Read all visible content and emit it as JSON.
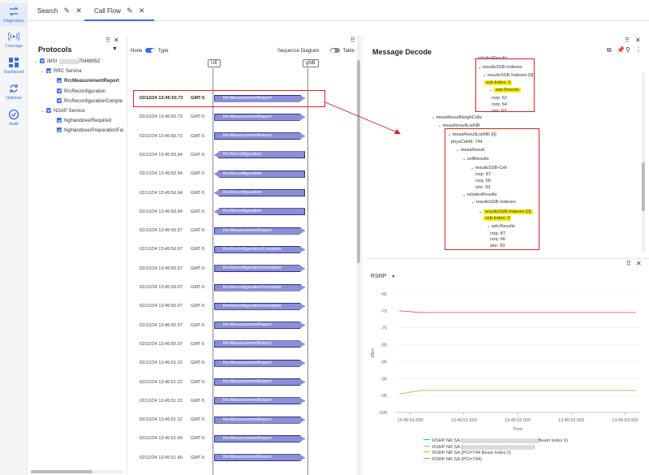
{
  "rail": [
    {
      "label": "Diagnostics",
      "icon": "swap-arrows-icon"
    },
    {
      "label": "Coverage",
      "icon": "signal-icon"
    },
    {
      "label": "Dashboard",
      "icon": "dashboard-grid-icon"
    },
    {
      "label": "Optimize",
      "icon": "refresh-icon"
    },
    {
      "label": "Audit",
      "icon": "check-circle-icon"
    }
  ],
  "tabs": [
    {
      "label": "Search"
    },
    {
      "label": "Call Flow"
    }
  ],
  "protocols": {
    "title": "Protocols",
    "tree": [
      {
        "label": "IMSI",
        "masked": "70469952",
        "level": 0,
        "caret": true
      },
      {
        "label": "RRC Service",
        "level": 1,
        "caret": true
      },
      {
        "label": "RrcMeasurementReport",
        "level": 2,
        "bold": true
      },
      {
        "label": "RrcReconfiguration",
        "level": 2
      },
      {
        "label": "RrcReconfigurationComple",
        "level": 2
      },
      {
        "label": "NGAP Service",
        "level": 1,
        "caret": true
      },
      {
        "label": "NgHandoverRequired",
        "level": 2
      },
      {
        "label": "NgHandoverPreparationFai",
        "level": 2
      }
    ]
  },
  "flow": {
    "none_label": "None",
    "type_label": "Type",
    "seq_label": "Sequence Diagram",
    "table_label": "Table",
    "lane_ue": "UE",
    "lane_gnb": "gNB",
    "messages": [
      {
        "time": "02/12/24 13:45:50.73",
        "tz": "GMT-5",
        "name": "RrcMeasurementReport",
        "dir": "right",
        "selected": true
      },
      {
        "time": "02/12/24 13:45:50.73",
        "tz": "GMT-5",
        "name": "RrcMeasurementReport",
        "dir": "right"
      },
      {
        "time": "02/12/24 13:45:50.73",
        "tz": "GMT-5",
        "name": "RrcMeasurementReport",
        "dir": "right"
      },
      {
        "time": "02/12/24 13:45:50.94",
        "tz": "GMT-5",
        "name": "RrcReconfiguration",
        "dir": "left"
      },
      {
        "time": "02/12/24 13:45:50.94",
        "tz": "GMT-5",
        "name": "RrcReconfiguration",
        "dir": "left"
      },
      {
        "time": "02/12/24 13:45:50.94",
        "tz": "GMT-5",
        "name": "RrcReconfiguration",
        "dir": "left"
      },
      {
        "time": "02/12/24 13:45:50.94",
        "tz": "GMT-5",
        "name": "RrcReconfiguration",
        "dir": "left"
      },
      {
        "time": "02/12/24 13:45:50.97",
        "tz": "GMT-5",
        "name": "RrcMeasurementReport",
        "dir": "right"
      },
      {
        "time": "02/12/24 13:45:50.97",
        "tz": "GMT-5",
        "name": "RrcReconfigurationComplete",
        "dir": "right"
      },
      {
        "time": "02/12/24 13:45:50.97",
        "tz": "GMT-5",
        "name": "RrcReconfigurationComplete",
        "dir": "right"
      },
      {
        "time": "02/12/24 13:45:50.97",
        "tz": "GMT-5",
        "name": "RrcReconfigurationComplete",
        "dir": "right"
      },
      {
        "time": "02/12/24 13:45:50.97",
        "tz": "GMT-5",
        "name": "RrcReconfigurationComplete",
        "dir": "right"
      },
      {
        "time": "02/12/24 13:45:50.97",
        "tz": "GMT-5",
        "name": "RrcMeasurementReport",
        "dir": "right"
      },
      {
        "time": "02/12/24 13:45:50.97",
        "tz": "GMT-5",
        "name": "RrcMeasurementReport",
        "dir": "right"
      },
      {
        "time": "02/12/24 13:45:51.22",
        "tz": "GMT-5",
        "name": "RrcMeasurementReport",
        "dir": "right"
      },
      {
        "time": "02/12/24 13:45:51.22",
        "tz": "GMT-5",
        "name": "RrcMeasurementReport",
        "dir": "right"
      },
      {
        "time": "02/12/24 13:45:51.22",
        "tz": "GMT-5",
        "name": "RrcMeasurementReport",
        "dir": "right"
      },
      {
        "time": "02/12/24 13:45:51.22",
        "tz": "GMT-5",
        "name": "RrcMeasurementReport",
        "dir": "right"
      },
      {
        "time": "02/12/24 13:45:51.46",
        "tz": "GMT-5",
        "name": "RrcMeasurementReport",
        "dir": "right"
      },
      {
        "time": "02/12/24 13:45:51.46",
        "tz": "GMT-5",
        "name": "RrcMeasurementReport",
        "dir": "right"
      }
    ]
  },
  "decode": {
    "title": "Message Decode",
    "rows": [
      {
        "text": "rsIndexResults",
        "indent": 0,
        "caret": true
      },
      {
        "text": "resultsSSB-Indexes",
        "indent": 1,
        "caret": true
      },
      {
        "text": "resultsSSB-Indexes [0]",
        "indent": 2,
        "caret": true
      },
      {
        "text": "ssb-Index: 6",
        "indent": 3,
        "hl": true
      },
      {
        "text": "ssb-Results",
        "indent": 3,
        "caret": true,
        "hl": true
      },
      {
        "text": "rsrp: 62",
        "indent": 5
      },
      {
        "text": "rsrq: 64",
        "indent": 5
      },
      {
        "text": "sinr: 63",
        "indent": 5
      },
      {
        "text": "measResultNeighCells",
        "indent": -5,
        "caret": true
      },
      {
        "text": "measResultListNR",
        "indent": -4,
        "caret": true
      },
      {
        "text": "measResultListNR [0]",
        "indent": -3,
        "caret": true
      },
      {
        "text": "physCellId: 744",
        "indent": -2
      },
      {
        "text": "measResult",
        "indent": -2,
        "caret": true
      },
      {
        "text": "cellResults",
        "indent": -1,
        "caret": true
      },
      {
        "text": "resultsSSB-Cell",
        "indent": 0,
        "caret": true
      },
      {
        "text": "rsrp: 87",
        "indent": 1
      },
      {
        "text": "rsrq: 66",
        "indent": 1
      },
      {
        "text": "sinr: 93",
        "indent": 1
      },
      {
        "text": "rsIndexResults",
        "indent": -1,
        "caret": true
      },
      {
        "text": "resultsSSB-Indexes",
        "indent": 0,
        "caret": true
      },
      {
        "text": "resultsSSB-Indexes [0]",
        "indent": 1,
        "caret": true,
        "hl": true
      },
      {
        "text": "ssb-Index: 0",
        "indent": 1,
        "hl": true
      },
      {
        "text": "ssb-Results",
        "indent": 1,
        "caret": true
      },
      {
        "text": "rsrp: 87",
        "indent": 2
      },
      {
        "text": "rsrq: 66",
        "indent": 2
      },
      {
        "text": "sinr: 93",
        "indent": 2
      }
    ]
  },
  "chart_data": {
    "type": "line",
    "metric_selector": "RSRP",
    "ylabel": "dBm",
    "xlabel": "Time",
    "ylim": [
      -100,
      -65
    ],
    "yticks": [
      -65,
      -70,
      -75,
      -80,
      -85,
      -90,
      -95,
      -100
    ],
    "xticks": [
      "13:45:51.000",
      "13:45:51.500",
      "13:45:52.000",
      "13:45:52.500",
      "13:45:53.000"
    ],
    "x": [
      "13:45:50.90",
      "13:45:51.10",
      "13:45:53.10"
    ],
    "series": [
      {
        "name": "RSRP NR SA (",
        "name_tail": "Beam Index 6)",
        "color": "#19b8b0",
        "values": [
          null,
          null,
          null
        ]
      },
      {
        "name": "RSRP NR SA (",
        "name_tail": ")",
        "color": "#9ec86a",
        "values": [
          -94.5,
          -93.5,
          -93.5
        ]
      },
      {
        "name": "RSRP NR SA (PCI=744 Beam Index 0)",
        "name_tail": "",
        "color": "#f0a020",
        "values": [
          null,
          null,
          null
        ]
      },
      {
        "name": "RSRP NR SA (PCI=744)",
        "name_tail": "",
        "color": "#e87070",
        "values": [
          -70,
          -70.5,
          -70.5
        ]
      }
    ]
  }
}
